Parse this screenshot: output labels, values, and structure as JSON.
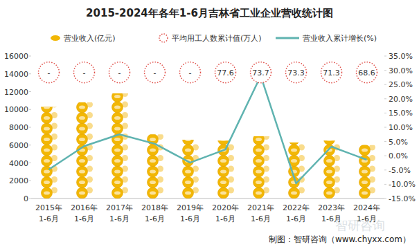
{
  "chart_data": {
    "type": "bar",
    "title": "2015-2024年各年1-6月吉林省工业企业营收统计图",
    "source": "制图：智研咨询（www.chyxx.com）",
    "watermark": "智研咨询",
    "categories": [
      "2015年\n1-6月",
      "2016年\n1-6月",
      "2017年\n1-6月",
      "2018年\n1-6月",
      "2019年\n1-6月",
      "2020年\n1-6月",
      "2021年\n1-6月",
      "2022年\n1-6月",
      "2023年\n1-6月",
      "2024年\n1-6月"
    ],
    "series": [
      {
        "name": "营业收入(亿元)",
        "type": "bar",
        "color": "#f2b705",
        "axis": "y",
        "values": [
          10300,
          10800,
          11800,
          7200,
          6600,
          6500,
          7000,
          6300,
          6500,
          6000
        ]
      },
      {
        "name": "平均用工人数累计值(万人)",
        "type": "scatter",
        "marker": "circle",
        "line_style": "dotted",
        "color": "#e0504a",
        "data_labels": true,
        "values": [
          null,
          null,
          null,
          null,
          null,
          77.6,
          73.7,
          73.3,
          71.3,
          68.6
        ],
        "value_labels": [
          "-",
          "-",
          "-",
          "-",
          "-",
          "77.6",
          "73.7",
          "73.3",
          "71.3",
          "68.6"
        ]
      },
      {
        "name": "营业收入累计增长(%)",
        "type": "line",
        "color": "#5fb3b0",
        "axis": "y2",
        "values": [
          -4.8,
          3.4,
          7.5,
          4.2,
          -2.4,
          2.2,
          28.0,
          -9.7,
          3.2,
          -1.4
        ]
      }
    ],
    "ylim": [
      0,
      16000
    ],
    "yticks": [
      0,
      2000,
      4000,
      6000,
      8000,
      10000,
      12000,
      14000,
      16000
    ],
    "y2lim": [
      -15,
      35
    ],
    "y2ticks": [
      {
        "value": -15,
        "label": "-15.0%"
      },
      {
        "value": -10,
        "label": "-10.0%"
      },
      {
        "value": -5,
        "label": "-5.0%"
      },
      {
        "value": 0,
        "label": "0.0%"
      },
      {
        "value": 5,
        "label": "5.0%"
      },
      {
        "value": 10,
        "label": "10.0%"
      },
      {
        "value": 15,
        "label": "15.0%"
      },
      {
        "value": 20,
        "label": "20.0%"
      },
      {
        "value": 25,
        "label": "25.0%"
      },
      {
        "value": 30,
        "label": "30.0%"
      },
      {
        "value": 35,
        "label": "35.0%"
      }
    ],
    "grid": false,
    "legend": "top"
  }
}
